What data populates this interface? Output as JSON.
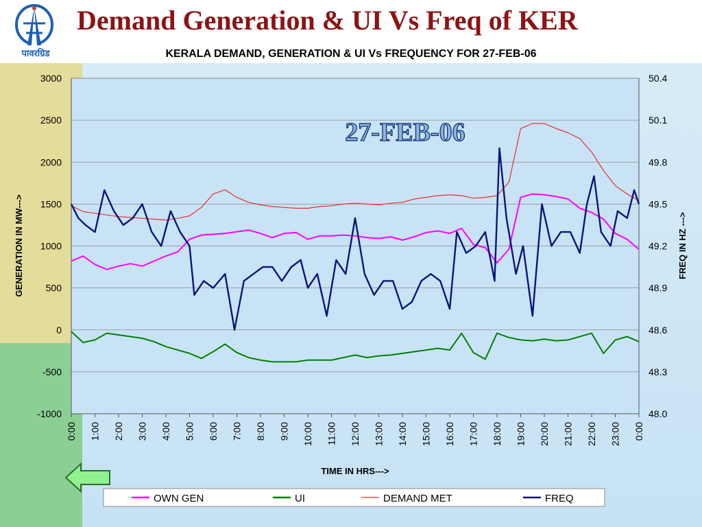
{
  "slide": {
    "title": "Demand Generation & UI Vs Freq of KER",
    "logo_text": "पावरग्रिड"
  },
  "nav": {
    "back_icon": "left-arrow-icon"
  },
  "chart_data": {
    "type": "line",
    "title": "KERALA  DEMAND, GENERATION & UI Vs FREQUENCY FOR 27-FEB-06",
    "annotation": "27-FEB-06",
    "xlabel": "TIME IN HRS--->",
    "ylabel": "GENERATION IN MW--->",
    "y2label": "FREQ IN HZ --->",
    "x_ticks": [
      "0:00",
      "1:00",
      "2:00",
      "3:00",
      "4:00",
      "5:00",
      "6:00",
      "7:00",
      "8:00",
      "9:00",
      "10:00",
      "11:00",
      "12:00",
      "13:00",
      "14:00",
      "15:00",
      "16:00",
      "17:00",
      "18:00",
      "19:00",
      "20:00",
      "21:00",
      "22:00",
      "23:00",
      "0:00"
    ],
    "ylim": [
      -1000,
      3000
    ],
    "y_ticks": [
      3000,
      2500,
      2000,
      1500,
      1000,
      500,
      0,
      -500,
      -1000
    ],
    "y2lim": [
      48.0,
      50.4
    ],
    "y2_ticks": [
      "50.4",
      "50.1",
      "49.8",
      "49.5",
      "49.2",
      "48.9",
      "48.6",
      "48.3",
      "48.0"
    ],
    "grid": "horizontal",
    "legend_position": "bottom",
    "series": [
      {
        "name": "OWN GEN",
        "axis": "left",
        "color": "#ff00ff",
        "x": [
          0,
          0.5,
          1,
          1.5,
          2,
          2.5,
          3,
          3.5,
          4,
          4.5,
          5,
          5.5,
          6,
          6.5,
          7,
          7.5,
          8,
          8.5,
          9,
          9.5,
          10,
          10.5,
          11,
          11.5,
          12,
          12.5,
          13,
          13.5,
          14,
          14.5,
          15,
          15.5,
          16,
          16.5,
          17,
          17.5,
          18,
          18.5,
          19,
          19.5,
          20,
          20.5,
          21,
          21.5,
          22,
          22.5,
          23,
          23.5,
          24
        ],
        "values": [
          820,
          880,
          780,
          720,
          760,
          790,
          760,
          820,
          880,
          930,
          1080,
          1130,
          1140,
          1150,
          1170,
          1190,
          1150,
          1100,
          1150,
          1160,
          1080,
          1120,
          1120,
          1130,
          1120,
          1100,
          1090,
          1110,
          1070,
          1110,
          1160,
          1180,
          1150,
          1210,
          1020,
          980,
          800,
          960,
          1580,
          1620,
          1610,
          1590,
          1560,
          1450,
          1400,
          1320,
          1150,
          1080,
          960
        ]
      },
      {
        "name": "UI",
        "axis": "left",
        "color": "#008000",
        "x": [
          0,
          0.5,
          1,
          1.5,
          2,
          2.5,
          3,
          3.5,
          4,
          4.5,
          5,
          5.5,
          6,
          6.5,
          7,
          7.5,
          8,
          8.5,
          9,
          9.5,
          10,
          10.5,
          11,
          11.5,
          12,
          12.5,
          13,
          13.5,
          14,
          14.5,
          15,
          15.5,
          16,
          16.5,
          17,
          17.5,
          18,
          18.5,
          19,
          19.5,
          20,
          20.5,
          21,
          21.5,
          22,
          22.5,
          23,
          23.5,
          24
        ],
        "values": [
          -20,
          -150,
          -120,
          -40,
          -60,
          -80,
          -100,
          -140,
          -200,
          -240,
          -280,
          -340,
          -260,
          -170,
          -270,
          -330,
          -360,
          -380,
          -380,
          -380,
          -360,
          -360,
          -360,
          -330,
          -300,
          -330,
          -310,
          -300,
          -280,
          -260,
          -240,
          -220,
          -240,
          -40,
          -270,
          -350,
          -40,
          -90,
          -120,
          -130,
          -110,
          -130,
          -120,
          -80,
          -40,
          -280,
          -120,
          -80,
          -140
        ]
      },
      {
        "name": "DEMAND MET",
        "axis": "left",
        "color": "#e8302a",
        "x": [
          0,
          0.5,
          1,
          1.5,
          2,
          2.5,
          3,
          3.5,
          4,
          4.5,
          5,
          5.5,
          6,
          6.5,
          7,
          7.5,
          8,
          8.5,
          9,
          9.5,
          10,
          10.5,
          11,
          11.5,
          12,
          12.5,
          13,
          13.5,
          14,
          14.5,
          15,
          15.5,
          16,
          16.5,
          17,
          17.5,
          18,
          18.5,
          19,
          19.5,
          20,
          20.5,
          21,
          21.5,
          22,
          22.5,
          23,
          23.5,
          24
        ],
        "values": [
          1480,
          1410,
          1390,
          1370,
          1350,
          1340,
          1330,
          1320,
          1310,
          1330,
          1360,
          1460,
          1620,
          1670,
          1580,
          1520,
          1490,
          1470,
          1460,
          1450,
          1450,
          1470,
          1480,
          1500,
          1510,
          1500,
          1490,
          1510,
          1520,
          1560,
          1580,
          1600,
          1610,
          1600,
          1570,
          1580,
          1600,
          1760,
          2400,
          2460,
          2460,
          2400,
          2350,
          2280,
          2120,
          1900,
          1720,
          1620,
          1540
        ]
      },
      {
        "name": "FREQ",
        "axis": "right",
        "color": "#0a1478",
        "x": [
          0,
          0.3,
          0.6,
          1,
          1.4,
          1.8,
          2.2,
          2.6,
          3,
          3.4,
          3.8,
          4.2,
          4.6,
          5,
          5.2,
          5.6,
          6,
          6.5,
          6.9,
          7.3,
          7.7,
          8.1,
          8.5,
          8.9,
          9.3,
          9.7,
          10,
          10.4,
          10.8,
          11.2,
          11.6,
          12,
          12.4,
          12.8,
          13.2,
          13.6,
          14,
          14.4,
          14.8,
          15.2,
          15.6,
          16,
          16.3,
          16.7,
          17.1,
          17.5,
          17.9,
          18.1,
          18.4,
          18.8,
          19.1,
          19.5,
          19.9,
          20.3,
          20.7,
          21.1,
          21.5,
          21.8,
          22.1,
          22.4,
          22.8,
          23.1,
          23.5,
          23.8,
          24
        ],
        "values": [
          49.5,
          49.4,
          49.35,
          49.3,
          49.6,
          49.45,
          49.35,
          49.4,
          49.5,
          49.3,
          49.2,
          49.45,
          49.3,
          49.2,
          48.85,
          48.95,
          48.9,
          49.0,
          48.6,
          48.95,
          49.0,
          49.05,
          49.05,
          48.95,
          49.05,
          49.1,
          48.9,
          49.0,
          48.7,
          49.1,
          49.0,
          49.4,
          49.0,
          48.85,
          48.95,
          48.95,
          48.75,
          48.8,
          48.95,
          49.0,
          48.95,
          48.75,
          49.3,
          49.15,
          49.2,
          49.3,
          48.95,
          49.9,
          49.4,
          49.0,
          49.2,
          48.7,
          49.5,
          49.2,
          49.3,
          49.3,
          49.15,
          49.5,
          49.7,
          49.3,
          49.2,
          49.45,
          49.4,
          49.6,
          49.5
        ]
      }
    ]
  }
}
